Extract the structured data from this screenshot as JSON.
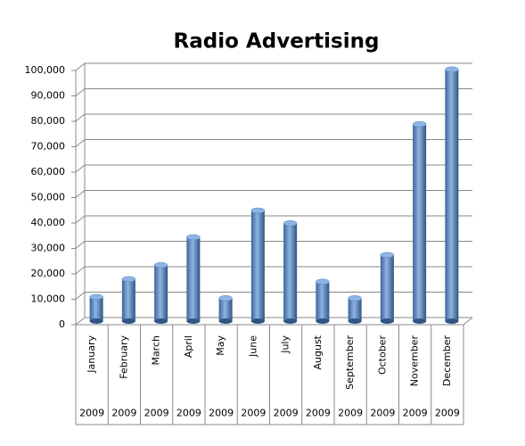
{
  "chart_data": {
    "type": "bar",
    "title": "Radio Advertising",
    "categories": [
      "January",
      "February",
      "March",
      "April",
      "May",
      "June",
      "July",
      "August",
      "September",
      "October",
      "November",
      "December"
    ],
    "category_groups": [
      "2009",
      "2009",
      "2009",
      "2009",
      "2009",
      "2009",
      "2009",
      "2009",
      "2009",
      "2009",
      "2009",
      "2009"
    ],
    "values": [
      9500,
      16500,
      22000,
      33000,
      9000,
      43500,
      38500,
      15500,
      9000,
      26000,
      77500,
      99000
    ],
    "color": "#4f81bd",
    "ylim": [
      0,
      100000
    ],
    "yticks": [
      0,
      {
        "value": 10000,
        "label": "10,000"
      },
      {
        "value": 20000,
        "label": "20,000"
      },
      {
        "value": 30000,
        "label": "30,000"
      },
      {
        "value": 40000,
        "label": "40,000"
      },
      {
        "value": 50000,
        "label": "50,000"
      },
      {
        "value": 60000,
        "label": "60,000"
      },
      {
        "value": 70000,
        "label": "70,000"
      },
      {
        "value": 80000,
        "label": "80,000"
      },
      {
        "value": 90000,
        "label": "90,000"
      },
      {
        "value": 100000,
        "label": "100,000"
      }
    ],
    "grid": true
  }
}
